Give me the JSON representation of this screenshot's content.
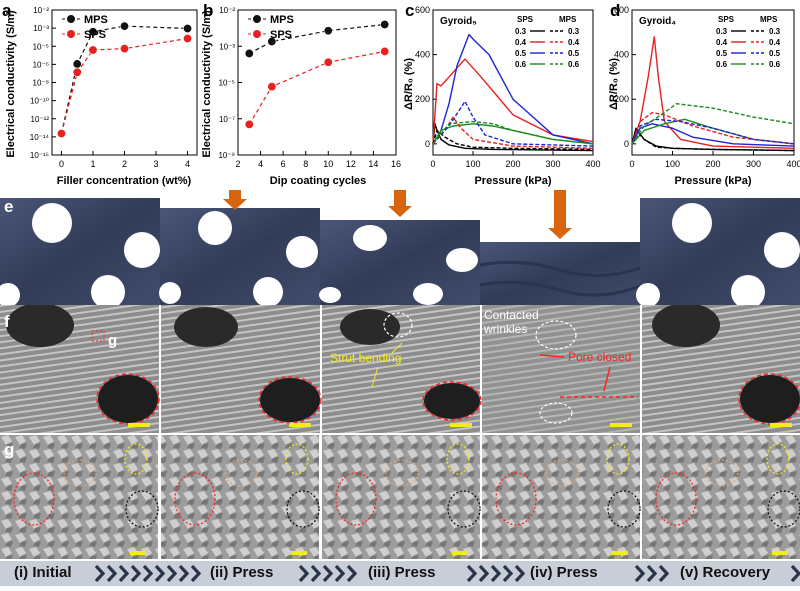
{
  "panels": {
    "a": {
      "letter": "a"
    },
    "b": {
      "letter": "b"
    },
    "c": {
      "letter": "c"
    },
    "d": {
      "letter": "d"
    },
    "e": {
      "letter": "e"
    },
    "f": {
      "letter": "f"
    },
    "g": {
      "letter": "g"
    },
    "f_inset_label": "g"
  },
  "annotations": {
    "strut_bending": "Strut bending",
    "contacted_wrinkles_1": "Contacted",
    "contacted_wrinkles_2": "wrinkles",
    "pore_closed": "Pore closed"
  },
  "stages": [
    "(i) Initial",
    "(ii) Press",
    "(iii) Press",
    "(iv) Press",
    "(v) Recovery"
  ],
  "colors": {
    "mps": "#111111",
    "sps": "#e8201e",
    "c03": "#000000",
    "c04": "#e8201e",
    "c05": "#1c24d6",
    "c06": "#1e8a1e",
    "arrow": "#d9640e",
    "gyroid": "#3c4664",
    "annotation_yellow": "#f4ec1a",
    "annotation_red": "#ff2020"
  },
  "chart_data": [
    {
      "panel": "a",
      "type": "line",
      "xlabel": "Filler concentration (wt%)",
      "ylabel": "Electrical conductivity (S/m)",
      "xlim": [
        -0.3,
        4.3
      ],
      "xticks": [
        "0",
        "1",
        "2",
        "3",
        "4"
      ],
      "ylim_log10": [
        -15,
        -1.5
      ],
      "yticks": [
        "10⁻¹⁵",
        "10⁻¹⁴",
        "10⁻¹²",
        "10⁻¹⁰",
        "10⁻⁸",
        "10⁻⁶",
        "10⁻⁵",
        "10⁻³",
        "10⁻²"
      ],
      "series": [
        {
          "name": "MPS",
          "x": [
            0,
            0.5,
            1,
            2,
            4
          ],
          "y": [
            "1e-13",
            "3e-7",
            "3e-4",
            "1e-3",
            "6e-4"
          ]
        },
        {
          "name": "SPS",
          "x": [
            0,
            0.5,
            1,
            2,
            4
          ],
          "y": [
            "1e-13",
            "5e-8",
            "6e-6",
            "8e-6",
            "7e-5"
          ]
        }
      ]
    },
    {
      "panel": "b",
      "type": "line",
      "xlabel": "Dip coating cycles",
      "ylabel": "Electrical conductivity (S/m)",
      "xlim": [
        2,
        16
      ],
      "xticks": [
        "2",
        "4",
        "6",
        "8",
        "10",
        "12",
        "14",
        "16"
      ],
      "yticks": [
        "10⁻⁹",
        "10⁻⁷",
        "10⁻⁵",
        "10⁻³",
        "10⁻²"
      ],
      "series": [
        {
          "name": "MPS",
          "x": [
            3,
            5,
            10,
            15
          ],
          "y": [
            "8e-5",
            "3e-4",
            "1e-3",
            "2e-3"
          ]
        },
        {
          "name": "SPS",
          "x": [
            3,
            5,
            10,
            15
          ],
          "y": [
            "3e-8",
            "2e-6",
            "3e-5",
            "1e-4"
          ]
        }
      ]
    },
    {
      "panel": "c",
      "type": "line",
      "title": "Gyroid₅",
      "xlabel": "Pressure (kPa)",
      "ylabel": "ΔR/R₀ (%)",
      "xlim": [
        0,
        400
      ],
      "ylim": [
        -50,
        600
      ],
      "xticks": [
        "0",
        "100",
        "200",
        "300",
        "400"
      ],
      "yticks": [
        "0",
        "200",
        "400",
        "600"
      ],
      "legend_headers": [
        "SPS",
        "MPS"
      ],
      "legend_values": [
        "0.3",
        "0.4",
        "0.5",
        "0.6"
      ],
      "series": [
        {
          "name": "SPS 0.3",
          "x": [
            0,
            5,
            10,
            20,
            40,
            80,
            150,
            400
          ],
          "y": [
            0,
            90,
            60,
            20,
            -5,
            -20,
            -25,
            -30
          ]
        },
        {
          "name": "SPS 0.4",
          "x": [
            0,
            10,
            20,
            40,
            80,
            120,
            200,
            300,
            400
          ],
          "y": [
            0,
            270,
            260,
            300,
            380,
            300,
            130,
            40,
            10
          ]
        },
        {
          "name": "SPS 0.5",
          "x": [
            0,
            20,
            40,
            60,
            90,
            100,
            140,
            200,
            300,
            400
          ],
          "y": [
            0,
            60,
            180,
            350,
            490,
            470,
            400,
            200,
            40,
            0
          ]
        },
        {
          "name": "SPS 0.6",
          "x": [
            0,
            20,
            50,
            100,
            150,
            200,
            300,
            400
          ],
          "y": [
            0,
            60,
            80,
            90,
            80,
            60,
            20,
            0
          ]
        },
        {
          "name": "MPS 0.3",
          "x": [
            0,
            10,
            30,
            60,
            100,
            200,
            400
          ],
          "y": [
            0,
            60,
            30,
            0,
            -15,
            -20,
            -25
          ]
        },
        {
          "name": "MPS 0.4",
          "x": [
            0,
            30,
            50,
            70,
            100,
            200,
            400
          ],
          "y": [
            0,
            60,
            120,
            70,
            20,
            -10,
            -20
          ]
        },
        {
          "name": "MPS 0.5",
          "x": [
            0,
            40,
            80,
            100,
            130,
            200,
            400
          ],
          "y": [
            0,
            80,
            190,
            120,
            40,
            0,
            -10
          ]
        },
        {
          "name": "MPS 0.6",
          "x": [
            0,
            40,
            100,
            150,
            200,
            300,
            400
          ],
          "y": [
            0,
            90,
            100,
            90,
            60,
            20,
            0
          ]
        }
      ]
    },
    {
      "panel": "d",
      "type": "line",
      "title": "Gyroid₄",
      "xlabel": "Pressure (kPa)",
      "ylabel": "ΔR/R₀ (%)",
      "xlim": [
        0,
        400
      ],
      "ylim": [
        -50,
        600
      ],
      "xticks": [
        "0",
        "100",
        "200",
        "300",
        "400"
      ],
      "yticks": [
        "0",
        "200",
        "400",
        "600"
      ],
      "legend_headers": [
        "SPS",
        "MPS"
      ],
      "legend_values": [
        "0.3",
        "0.4",
        "0.5",
        "0.6"
      ],
      "series": [
        {
          "name": "SPS 0.3",
          "x": [
            0,
            10,
            30,
            60,
            100,
            200,
            400
          ],
          "y": [
            0,
            70,
            20,
            -10,
            -20,
            -25,
            -30
          ]
        },
        {
          "name": "SPS 0.4",
          "x": [
            0,
            20,
            40,
            55,
            65,
            80,
            120,
            200,
            400
          ],
          "y": [
            0,
            100,
            300,
            480,
            300,
            100,
            20,
            -10,
            -20
          ]
        },
        {
          "name": "SPS 0.5",
          "x": [
            0,
            20,
            50,
            100,
            150,
            250,
            400
          ],
          "y": [
            0,
            70,
            90,
            70,
            30,
            0,
            -10
          ]
        },
        {
          "name": "SPS 0.6",
          "x": [
            0,
            30,
            80,
            130,
            200,
            300,
            400
          ],
          "y": [
            0,
            60,
            90,
            110,
            70,
            20,
            0
          ]
        },
        {
          "name": "MPS 0.3",
          "x": [
            0,
            10,
            30,
            60,
            100,
            200,
            400
          ],
          "y": [
            0,
            60,
            20,
            -15,
            -20,
            -25,
            -30
          ]
        },
        {
          "name": "MPS 0.4",
          "x": [
            0,
            20,
            50,
            80,
            150,
            250,
            400
          ],
          "y": [
            0,
            100,
            140,
            130,
            80,
            30,
            0
          ]
        },
        {
          "name": "MPS 0.5",
          "x": [
            0,
            20,
            60,
            120,
            200,
            300,
            400
          ],
          "y": [
            0,
            80,
            110,
            100,
            70,
            20,
            0
          ]
        },
        {
          "name": "MPS 0.6",
          "x": [
            0,
            30,
            80,
            110,
            200,
            300,
            400
          ],
          "y": [
            0,
            80,
            140,
            180,
            160,
            120,
            90
          ]
        }
      ]
    }
  ]
}
